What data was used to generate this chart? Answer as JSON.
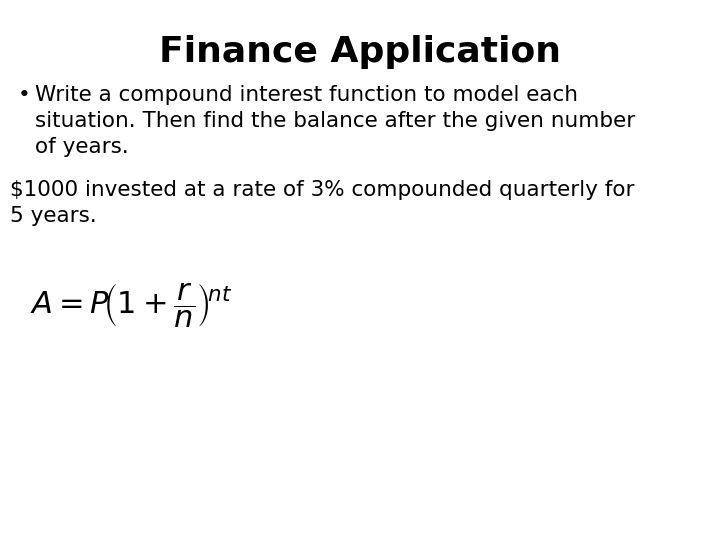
{
  "title": "Finance Application",
  "title_fontsize": 26,
  "background_color": "#ffffff",
  "text_color": "#000000",
  "bullet_dot": "•",
  "bullet_text_line1": "Write a compound interest function to model each",
  "bullet_text_line2": "situation. Then find the balance after the given number",
  "bullet_text_line3": "of years.",
  "body_text_line1": "$1000 invested at a rate of 3% compounded quarterly for",
  "body_text_line2": "5 years.",
  "text_fontsize": 15.5,
  "formula_fontsize": 22,
  "title_font": "DejaVu Sans",
  "body_font": "DejaVu Sans"
}
